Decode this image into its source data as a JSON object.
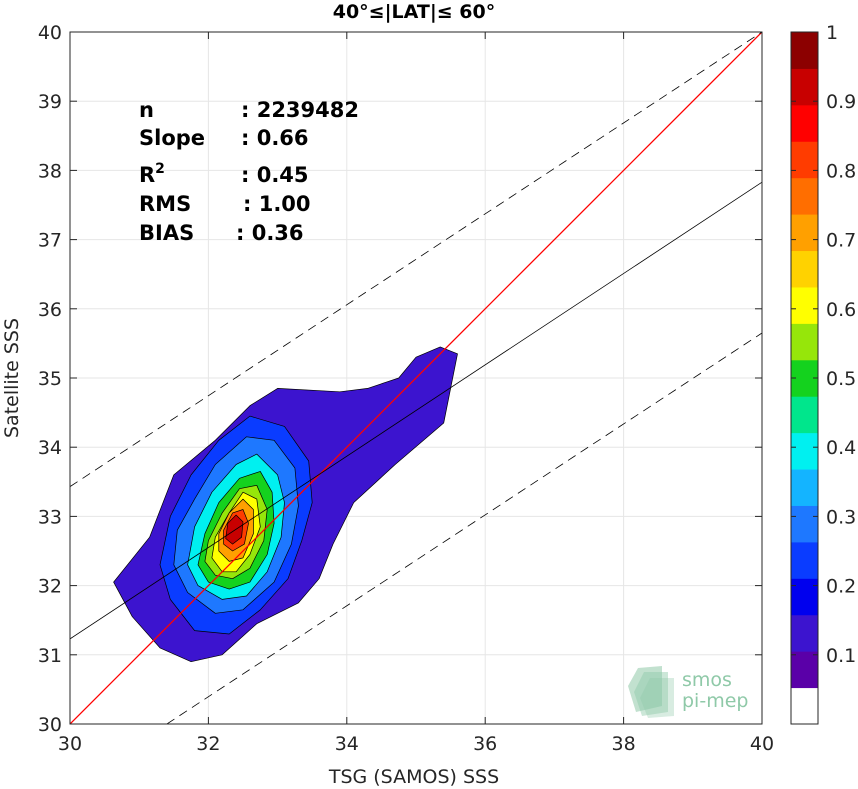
{
  "chart_data": {
    "type": "scatter",
    "title": "40°≤|LAT|≤ 60°",
    "xlabel": "TSG (SAMOS) SSS",
    "ylabel": "Satellite SSS",
    "xlim": [
      30,
      40
    ],
    "ylim": [
      30,
      40
    ],
    "xticks": [
      30,
      32,
      34,
      36,
      38,
      40
    ],
    "yticks": [
      30,
      31,
      32,
      33,
      34,
      35,
      36,
      37,
      38,
      39,
      40
    ],
    "grid": true,
    "stats": [
      {
        "key": "n",
        "value": ": 2239482"
      },
      {
        "key": "Slope",
        "value": ": 0.66"
      },
      {
        "key": "R",
        "sup": "2",
        "value": ": 0.45"
      },
      {
        "key": "RMS",
        "value": ": 1.00"
      },
      {
        "key": "BIAS",
        "value": ": 0.36"
      }
    ],
    "lines": [
      {
        "name": "one-to-one",
        "color": "#ff0000",
        "style": "solid",
        "x": [
          30,
          40
        ],
        "y": [
          30,
          40
        ]
      },
      {
        "name": "fit",
        "color": "#000000",
        "style": "solid",
        "x": [
          30,
          40
        ],
        "y": [
          31.23,
          37.83
        ]
      },
      {
        "name": "upper-bound",
        "color": "#000000",
        "style": "dashed",
        "x": [
          30,
          40
        ],
        "y": [
          33.43,
          40.0
        ]
      },
      {
        "name": "lower-bound",
        "color": "#000000",
        "style": "dashed",
        "x": [
          31.4,
          40
        ],
        "y": [
          30.0,
          35.65
        ]
      }
    ],
    "colorbar": {
      "ticks": [
        "0.1",
        "0.2",
        "0.3",
        "0.4",
        "0.5",
        "0.6",
        "0.7",
        "0.8",
        "0.9",
        "1"
      ],
      "tick_values": [
        0.1,
        0.2,
        0.3,
        0.4,
        0.5,
        0.6,
        0.7,
        0.8,
        0.9,
        1.0
      ],
      "range": [
        0.0,
        1.0
      ],
      "colors": [
        "#ffffff",
        "#5a00a8",
        "#3c14cf",
        "#0000ee",
        "#0a3cff",
        "#1e78ff",
        "#14b4ff",
        "#00f0f0",
        "#00e68c",
        "#14d21e",
        "#96e60a",
        "#ffff00",
        "#ffd200",
        "#ffa000",
        "#ff6e00",
        "#ff3c00",
        "#ff0000",
        "#c80000",
        "#8c0000"
      ]
    },
    "density_levels": [
      {
        "level": 0.05,
        "color": "#3c14cf",
        "points": [
          [
            30.63,
            32.05
          ],
          [
            30.9,
            31.55
          ],
          [
            31.3,
            31.1
          ],
          [
            31.75,
            30.9
          ],
          [
            32.2,
            31.0
          ],
          [
            32.7,
            31.45
          ],
          [
            33.3,
            31.75
          ],
          [
            33.6,
            32.1
          ],
          [
            33.8,
            32.6
          ],
          [
            34.1,
            33.2
          ],
          [
            34.7,
            33.75
          ],
          [
            35.4,
            34.35
          ],
          [
            35.6,
            35.35
          ],
          [
            35.35,
            35.45
          ],
          [
            35.0,
            35.3
          ],
          [
            34.75,
            35.0
          ],
          [
            34.3,
            34.85
          ],
          [
            33.9,
            34.8
          ],
          [
            33.0,
            34.85
          ],
          [
            32.6,
            34.6
          ],
          [
            32.1,
            34.1
          ],
          [
            31.5,
            33.6
          ],
          [
            31.15,
            32.7
          ],
          [
            30.63,
            32.05
          ]
        ]
      },
      {
        "level": 0.15,
        "color": "#0a3cff",
        "points": [
          [
            31.3,
            32.3
          ],
          [
            31.45,
            31.8
          ],
          [
            31.8,
            31.35
          ],
          [
            32.3,
            31.3
          ],
          [
            32.75,
            31.65
          ],
          [
            33.15,
            32.1
          ],
          [
            33.35,
            32.65
          ],
          [
            33.5,
            33.2
          ],
          [
            33.45,
            33.8
          ],
          [
            33.1,
            34.3
          ],
          [
            32.6,
            34.45
          ],
          [
            32.15,
            34.1
          ],
          [
            31.75,
            33.6
          ],
          [
            31.45,
            33.0
          ],
          [
            31.3,
            32.3
          ]
        ]
      },
      {
        "level": 0.25,
        "color": "#1e78ff",
        "points": [
          [
            31.5,
            32.3
          ],
          [
            31.7,
            31.9
          ],
          [
            32.1,
            31.6
          ],
          [
            32.5,
            31.65
          ],
          [
            32.95,
            32.05
          ],
          [
            33.2,
            32.6
          ],
          [
            33.3,
            33.15
          ],
          [
            33.25,
            33.7
          ],
          [
            32.95,
            34.1
          ],
          [
            32.55,
            34.15
          ],
          [
            32.1,
            33.75
          ],
          [
            31.8,
            33.25
          ],
          [
            31.55,
            32.8
          ],
          [
            31.5,
            32.3
          ]
        ]
      },
      {
        "level": 0.35,
        "color": "#00f0f0",
        "points": [
          [
            31.7,
            32.3
          ],
          [
            31.85,
            32.0
          ],
          [
            32.2,
            31.8
          ],
          [
            32.55,
            31.85
          ],
          [
            32.85,
            32.2
          ],
          [
            33.05,
            32.7
          ],
          [
            33.1,
            33.2
          ],
          [
            33.0,
            33.6
          ],
          [
            32.7,
            33.9
          ],
          [
            32.4,
            33.75
          ],
          [
            32.05,
            33.35
          ],
          [
            31.8,
            32.85
          ],
          [
            31.7,
            32.3
          ]
        ]
      },
      {
        "level": 0.45,
        "color": "#14d21e",
        "points": [
          [
            31.85,
            32.3
          ],
          [
            32.0,
            32.05
          ],
          [
            32.3,
            31.95
          ],
          [
            32.6,
            32.05
          ],
          [
            32.85,
            32.45
          ],
          [
            32.95,
            32.9
          ],
          [
            32.92,
            33.35
          ],
          [
            32.75,
            33.65
          ],
          [
            32.45,
            33.55
          ],
          [
            32.15,
            33.2
          ],
          [
            31.95,
            32.75
          ],
          [
            31.85,
            32.3
          ]
        ]
      },
      {
        "level": 0.55,
        "color": "#96e60a",
        "points": [
          [
            31.95,
            32.35
          ],
          [
            32.1,
            32.15
          ],
          [
            32.35,
            32.1
          ],
          [
            32.6,
            32.25
          ],
          [
            32.8,
            32.65
          ],
          [
            32.85,
            33.1
          ],
          [
            32.7,
            33.45
          ],
          [
            32.45,
            33.4
          ],
          [
            32.2,
            33.05
          ],
          [
            32.0,
            32.65
          ],
          [
            31.95,
            32.35
          ]
        ]
      },
      {
        "level": 0.65,
        "color": "#ffff00",
        "points": [
          [
            32.05,
            32.4
          ],
          [
            32.2,
            32.2
          ],
          [
            32.4,
            32.2
          ],
          [
            32.6,
            32.45
          ],
          [
            32.75,
            32.85
          ],
          [
            32.7,
            33.25
          ],
          [
            32.5,
            33.35
          ],
          [
            32.3,
            33.05
          ],
          [
            32.1,
            32.7
          ],
          [
            32.05,
            32.4
          ]
        ]
      },
      {
        "level": 0.75,
        "color": "#ffa000",
        "points": [
          [
            32.15,
            32.5
          ],
          [
            32.3,
            32.35
          ],
          [
            32.5,
            32.4
          ],
          [
            32.65,
            32.75
          ],
          [
            32.65,
            33.1
          ],
          [
            32.5,
            33.25
          ],
          [
            32.3,
            33.05
          ],
          [
            32.15,
            32.75
          ],
          [
            32.15,
            32.5
          ]
        ]
      },
      {
        "level": 0.85,
        "color": "#ff3c00",
        "points": [
          [
            32.22,
            32.6
          ],
          [
            32.35,
            32.5
          ],
          [
            32.52,
            32.6
          ],
          [
            32.58,
            32.9
          ],
          [
            32.5,
            33.1
          ],
          [
            32.35,
            33.05
          ],
          [
            32.22,
            32.8
          ],
          [
            32.22,
            32.6
          ]
        ]
      },
      {
        "level": 0.95,
        "color": "#c80000",
        "points": [
          [
            32.25,
            32.68
          ],
          [
            32.35,
            32.6
          ],
          [
            32.48,
            32.7
          ],
          [
            32.5,
            32.92
          ],
          [
            32.4,
            33.02
          ],
          [
            32.28,
            32.9
          ],
          [
            32.25,
            32.68
          ]
        ]
      }
    ]
  },
  "logo": {
    "text_line1": "smos",
    "text_line2": "pi-mep",
    "color": "#8fc9a8"
  }
}
